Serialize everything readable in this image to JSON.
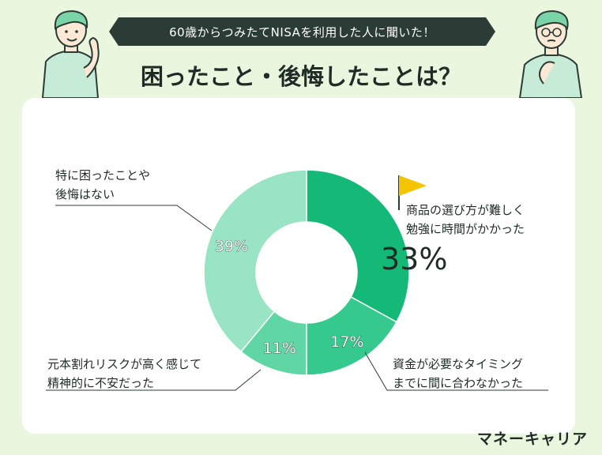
{
  "banner": "60歳からつみたてNISAを利用した人に聞いた！",
  "headline": "困ったこと・後悔したことは？",
  "brand": "マネーキャリア",
  "colors": {
    "background": "#eaf6dd",
    "banner": "#2b3b36",
    "slice_dark": "#14b978",
    "slice_mid": "#36c98d",
    "slice_light": "#5fd6a4",
    "slice_pale": "#98e4c4",
    "flag": "#f4c400"
  },
  "chart_data": {
    "type": "pie",
    "title": "困ったこと・後悔したことは？",
    "labels": [
      "商品の選び方が難しく勉強に時間がかかった",
      "資金が必要なタイミングまでに間に合わなかった",
      "元本割れリスクが高く感じて精神的に不安だった",
      "特に困ったことや後悔はない"
    ],
    "values": [
      33,
      17,
      11,
      39
    ],
    "value_labels": [
      "33%",
      "17%",
      "11%",
      "39%"
    ],
    "colors": [
      "#14b978",
      "#36c98d",
      "#5fd6a4",
      "#98e4c4"
    ]
  },
  "callouts": {
    "slice1": [
      "商品の選び方が難しく",
      "勉強に時間がかかった"
    ],
    "slice2": [
      "資金が必要なタイミング",
      "までに間に合わなかった"
    ],
    "slice3": [
      "元本割れリスクが高く感じて",
      "精神的に不安だった"
    ],
    "slice4": [
      "特に困ったことや",
      "後悔はない"
    ]
  }
}
